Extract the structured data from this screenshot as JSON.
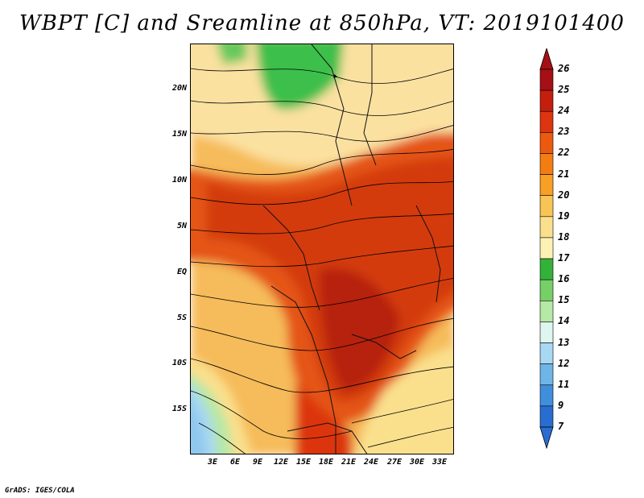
{
  "title": "WBPT [C] and Sreamline at 850hPa, VT: 2019101400",
  "lat_labels": [
    "20N",
    "15N",
    "10N",
    "5N",
    "EQ",
    "5S",
    "10S",
    "15S"
  ],
  "lon_labels": [
    "3E",
    "6E",
    "9E",
    "12E",
    "15E",
    "18E",
    "21E",
    "24E",
    "27E",
    "30E",
    "33E"
  ],
  "colorbar": {
    "labels": [
      "26",
      "25",
      "24",
      "23",
      "22",
      "21",
      "20",
      "19",
      "18",
      "17",
      "16",
      "15",
      "14",
      "13",
      "12",
      "11",
      "9",
      "7"
    ],
    "colors": [
      "#a50f15",
      "#c41e0c",
      "#dc3510",
      "#ec5a10",
      "#f47d12",
      "#f8a024",
      "#f8c455",
      "#fae08d",
      "#fdf2b5",
      "#33b23a",
      "#77cf68",
      "#b6e8a6",
      "#dff5ef",
      "#a9d8f3",
      "#6fb5e8",
      "#3f8fdc",
      "#2a6dd0"
    ]
  },
  "footer": "GrADS: IGES/COLA"
}
